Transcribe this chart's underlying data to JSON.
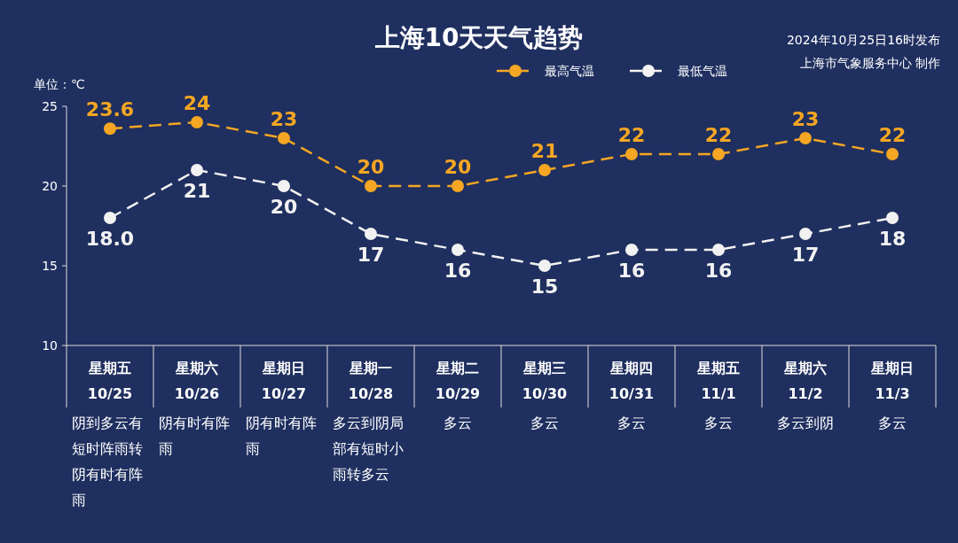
{
  "chart_data": {
    "type": "line",
    "title": "上海10天天气趋势",
    "ylabel": "单位：℃",
    "categories": [
      "星期五\n10/25",
      "星期六\n10/26",
      "星期日\n10/27",
      "星期一\n10/28",
      "星期二\n10/29",
      "星期三\n10/30",
      "星期四\n10/31",
      "星期五\n11/1",
      "星期六\n11/2",
      "星期日\n11/3"
    ],
    "series": [
      {
        "name": "最高气温",
        "color": "#f5a623",
        "values": [
          23.6,
          24,
          23,
          20,
          20,
          21,
          22,
          22,
          23,
          22
        ],
        "value_labels": [
          "23.6",
          "24",
          "23",
          "20",
          "20",
          "21",
          "22",
          "22",
          "23",
          "22"
        ]
      },
      {
        "name": "最低气温",
        "color": "#f2f2f2",
        "values": [
          18,
          21,
          20,
          17,
          16,
          15,
          16,
          16,
          17,
          18
        ],
        "value_labels": [
          "18.0",
          "21",
          "20",
          "17",
          "16",
          "15",
          "16",
          "16",
          "17",
          "18"
        ]
      }
    ],
    "ylim": [
      10,
      25
    ],
    "yticks": [
      10,
      15,
      20,
      25
    ],
    "grid": false,
    "legend": "top right",
    "marker": "circle",
    "line_style": "dashed",
    "annotations": [
      "2024年10月25日16时发布",
      "上海市气象服务中心 制作",
      "阴到多云有短时阵雨转阴有时有阵雨",
      "阴有时有阵雨",
      "阴有时有阵雨",
      "多云到阴局部有短时小雨转多云",
      "多云",
      "多云",
      "多云",
      "多云",
      "多云到阴",
      "多云"
    ]
  }
}
